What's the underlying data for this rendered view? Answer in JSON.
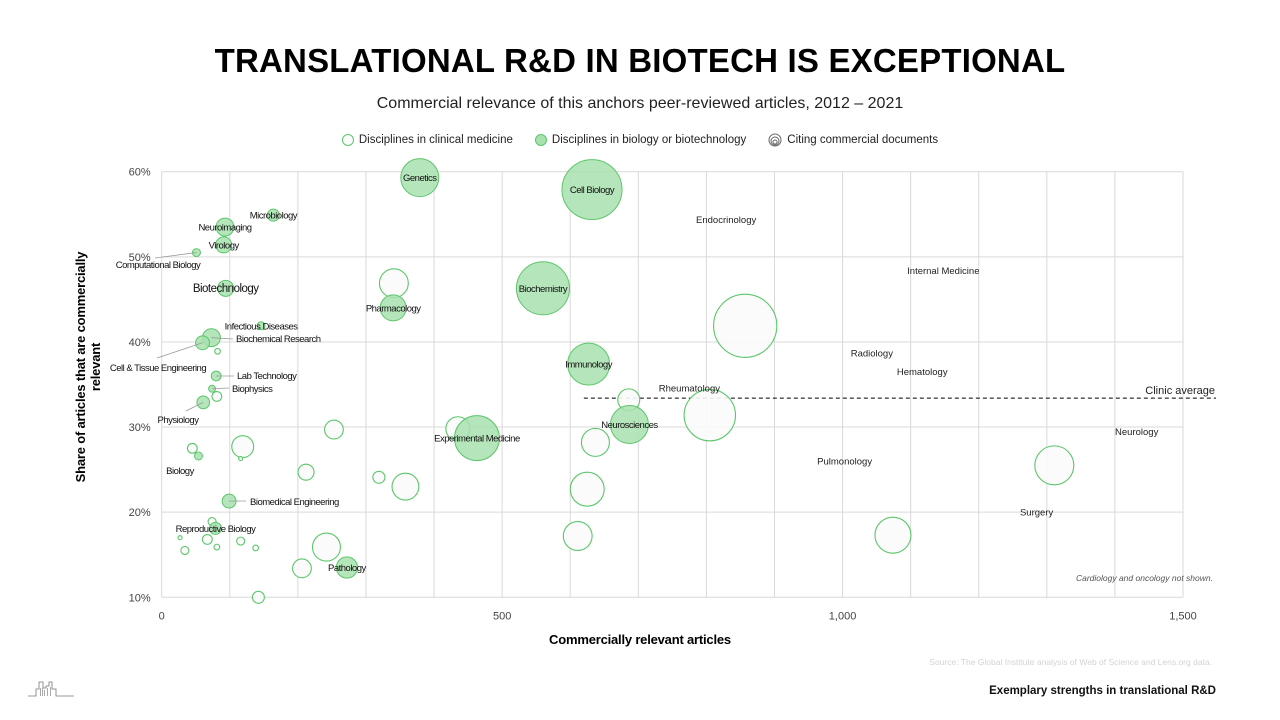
{
  "header": {
    "title": "TRANSLATIONAL R&D IN BIOTECH IS EXCEPTIONAL",
    "subtitle": "Commercial relevance of this anchors peer-reviewed articles, 2012 – 2021"
  },
  "legend": {
    "clinical": "Disciplines in clinical medicine",
    "biology": "Disciplines in biology or biotechnology",
    "citing": "Citing commercial documents"
  },
  "footer": {
    "source": "Source: The Global Institute analysis of Web of Science and Lens.org data.",
    "tagline": "Exemplary strengths in translational R&D"
  },
  "colors": {
    "bubble_stroke": "#5cc66b",
    "biology_fill": "#a8e0ae",
    "clinical_fill": "#f9fbf9",
    "grid": "#d9d9d9",
    "reference_line": "#000000"
  },
  "chart_data": {
    "type": "scatter",
    "subtype": "bubble",
    "title": "TRANSLATIONAL R&D IN BIOTECH IS EXCEPTIONAL",
    "xlabel": "Commercially relevant articles",
    "ylabel": "Share of articles that are commercially relevant",
    "xlim": [
      0,
      1500
    ],
    "ylim": [
      10,
      60
    ],
    "x_ticks": [
      0,
      500,
      1000,
      1500
    ],
    "x_tick_labels": [
      "0",
      "500",
      "1,000",
      "1,500"
    ],
    "x_minor_step": 100,
    "y_ticks": [
      10,
      20,
      30,
      40,
      50,
      60
    ],
    "y_tick_labels": [
      "10%",
      "20%",
      "30%",
      "40%",
      "50%",
      "60%"
    ],
    "grid": true,
    "legend_position": "top-center",
    "size_meaning": "Citing commercial documents (relative)",
    "reference_line": {
      "label": "Clinic average",
      "y": 33.4,
      "x_start": 620
    },
    "note": "Cardiology and oncology not shown.",
    "series": [
      {
        "name": "Disciplines in biology or biotechnology",
        "style": "filled",
        "points": [
          {
            "label": "Genetics",
            "x": 379,
            "y": 59.3,
            "size": 90
          },
          {
            "label": "Cell Biology",
            "x": 632,
            "y": 57.9,
            "size": 225
          },
          {
            "label": "Microbiology",
            "x": 164,
            "y": 54.9,
            "size": 9
          },
          {
            "label": "Neuroimaging",
            "x": 93,
            "y": 53.5,
            "size": 20
          },
          {
            "label": "Virology",
            "x": 91,
            "y": 51.4,
            "size": 16
          },
          {
            "label": "Computational Biology",
            "x": 51,
            "y": 50.5,
            "size": 4,
            "leader": true
          },
          {
            "label": "Biotechnology",
            "x": 94,
            "y": 46.3,
            "size": 16
          },
          {
            "label": "Biochemistry",
            "x": 560,
            "y": 46.3,
            "size": 176
          },
          {
            "label": "Pharmacology",
            "x": 340,
            "y": 44.0,
            "size": 42
          },
          {
            "label": "Infectious Diseases",
            "x": 146,
            "y": 41.9,
            "size": 4
          },
          {
            "label": "Biochemical Research",
            "x": 73,
            "y": 40.5,
            "size": 20,
            "leader": true
          },
          {
            "label": "Cell & Tissue Engineering",
            "x": 60,
            "y": 39.9,
            "size": 12,
            "leader": true
          },
          {
            "label": "Immunology",
            "x": 627,
            "y": 37.4,
            "size": 110
          },
          {
            "label": "Lab Technology",
            "x": 80,
            "y": 36.0,
            "size": 6,
            "leader": true
          },
          {
            "label": "Biophysics",
            "x": 74,
            "y": 34.5,
            "size": 3,
            "leader": true
          },
          {
            "label": "Physiology",
            "x": 61,
            "y": 32.9,
            "size": 10,
            "leader": true
          },
          {
            "label": "Neurosciences",
            "x": 687,
            "y": 30.3,
            "size": 90
          },
          {
            "label": "Experimental Medicine",
            "x": 463,
            "y": 28.7,
            "size": 126
          },
          {
            "label": "Biology",
            "x": 54,
            "y": 26.6,
            "size": 4
          },
          {
            "label": "Biomedical Engineering",
            "x": 99,
            "y": 21.3,
            "size": 12,
            "leader": true
          },
          {
            "label": "Reproductive Biology",
            "x": 79,
            "y": 18.1,
            "size": 9
          },
          {
            "label": "Pathology",
            "x": 272,
            "y": 13.5,
            "size": 28
          }
        ]
      },
      {
        "name": "Disciplines in clinical medicine",
        "style": "open",
        "points": [
          {
            "x": 857,
            "y": 41.9,
            "size": 250
          },
          {
            "x": 805,
            "y": 31.4,
            "size": 165
          },
          {
            "x": 341,
            "y": 46.9,
            "size": 52
          },
          {
            "x": 686,
            "y": 33.2,
            "size": 30
          },
          {
            "x": 637,
            "y": 28.2,
            "size": 49
          },
          {
            "x": 625,
            "y": 22.7,
            "size": 72
          },
          {
            "x": 611,
            "y": 17.2,
            "size": 52
          },
          {
            "x": 1311,
            "y": 25.5,
            "size": 95
          },
          {
            "x": 1074,
            "y": 17.3,
            "size": 81
          },
          {
            "x": 435,
            "y": 29.8,
            "size": 36
          },
          {
            "x": 253,
            "y": 29.7,
            "size": 22
          },
          {
            "x": 212,
            "y": 24.7,
            "size": 16
          },
          {
            "x": 319,
            "y": 24.1,
            "size": 9
          },
          {
            "x": 358,
            "y": 23.0,
            "size": 45
          },
          {
            "x": 242,
            "y": 15.9,
            "size": 49
          },
          {
            "x": 206,
            "y": 13.4,
            "size": 22
          },
          {
            "x": 142,
            "y": 10.0,
            "size": 9
          },
          {
            "x": 119,
            "y": 27.7,
            "size": 30
          },
          {
            "x": 116,
            "y": 26.3,
            "size": 1
          },
          {
            "x": 45,
            "y": 27.5,
            "size": 6
          },
          {
            "x": 82,
            "y": 38.9,
            "size": 2
          },
          {
            "x": 81,
            "y": 33.6,
            "size": 6
          },
          {
            "x": 74,
            "y": 18.9,
            "size": 4
          },
          {
            "x": 27,
            "y": 17.0,
            "size": 1
          },
          {
            "x": 67,
            "y": 16.8,
            "size": 6
          },
          {
            "x": 81,
            "y": 15.9,
            "size": 2
          },
          {
            "x": 34,
            "y": 15.5,
            "size": 4
          },
          {
            "x": 116,
            "y": 16.6,
            "size": 4
          },
          {
            "x": 138,
            "y": 15.8,
            "size": 2
          }
        ]
      }
    ],
    "annotations": [
      {
        "label": "Endocrinology",
        "x": 829,
        "y": 54.4
      },
      {
        "label": "Internal Medicine",
        "x": 1148,
        "y": 48.4
      },
      {
        "label": "Radiology",
        "x": 1043,
        "y": 38.7
      },
      {
        "label": "Hematology",
        "x": 1117,
        "y": 36.5
      },
      {
        "label": "Rheumatology",
        "x": 775,
        "y": 34.6
      },
      {
        "label": "Neurology",
        "x": 1432,
        "y": 29.5
      },
      {
        "label": "Pulmonology",
        "x": 1003,
        "y": 26.0
      },
      {
        "label": "Surgery",
        "x": 1285,
        "y": 20.0
      }
    ]
  }
}
